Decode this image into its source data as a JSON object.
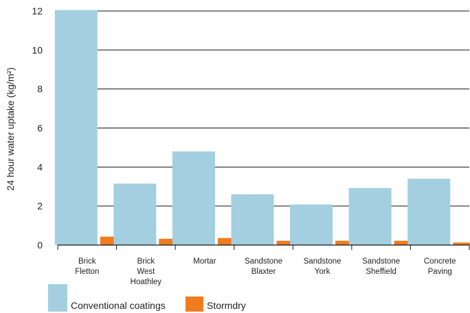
{
  "chart_data": {
    "type": "bar",
    "ylabel": "24 hour water uptake (kg/m²)",
    "ylim": [
      0,
      12
    ],
    "yticks": [
      0,
      2,
      4,
      6,
      8,
      10,
      12
    ],
    "grid": "horizontal",
    "legend_position": "bottom-left",
    "categories": [
      [
        "Brick",
        "Fletton"
      ],
      [
        "Brick",
        "West",
        "Hoathley"
      ],
      [
        "Mortar"
      ],
      [
        "Sandstone",
        "Blaxter"
      ],
      [
        "Sandstone",
        "York"
      ],
      [
        "Sandstone",
        "Sheffield"
      ],
      [
        "Concrete",
        "Paving"
      ]
    ],
    "series": [
      {
        "name": "Conventional coatings",
        "color": "#a3cfe0",
        "values": [
          12.05,
          3.15,
          4.8,
          2.6,
          2.08,
          2.92,
          3.4
        ]
      },
      {
        "name": "Stormdry",
        "color": "#f07c1e",
        "values": [
          0.43,
          0.32,
          0.36,
          0.22,
          0.22,
          0.22,
          0.13
        ]
      }
    ]
  }
}
